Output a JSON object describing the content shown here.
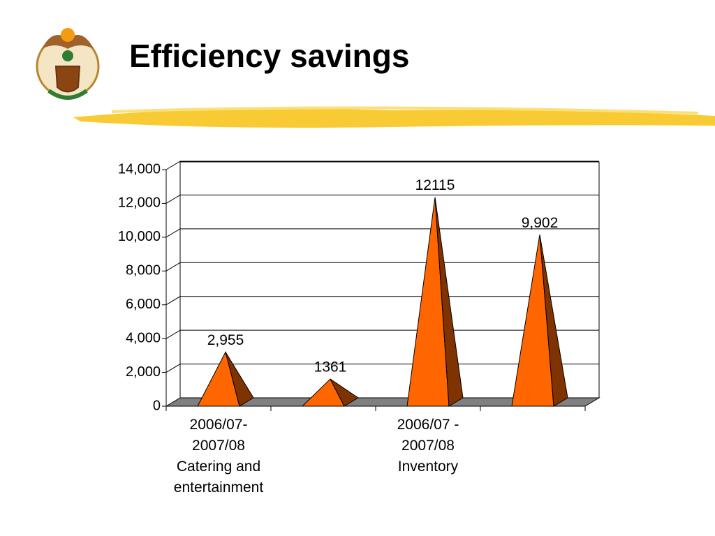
{
  "chart_data": {
    "type": "pyramid",
    "title": "Efficiency savings",
    "categories": [
      "2006/07-\n2007/08\nCatering and\nentertainment",
      null,
      "2006/07 -\n2007/08\nInventory",
      null
    ],
    "values": [
      2955,
      1361,
      12115,
      9902
    ],
    "value_labels": [
      "2,955",
      "1361",
      "12115",
      "9,902"
    ],
    "color": "#ff6600",
    "side_color": "#7f3300",
    "ylim": [
      0,
      14000
    ],
    "yticks": [
      0,
      {
        "value": 2000,
        "label": "2,000"
      },
      {
        "value": 4000,
        "label": "4,000"
      },
      {
        "value": 6000,
        "label": "6,000"
      },
      {
        "value": 8000,
        "label": "8,000"
      },
      {
        "value": 10000,
        "label": "10,000"
      },
      {
        "value": 12000,
        "label": "12,000"
      },
      {
        "value": 14000,
        "label": "14,000"
      }
    ],
    "grid": true
  }
}
